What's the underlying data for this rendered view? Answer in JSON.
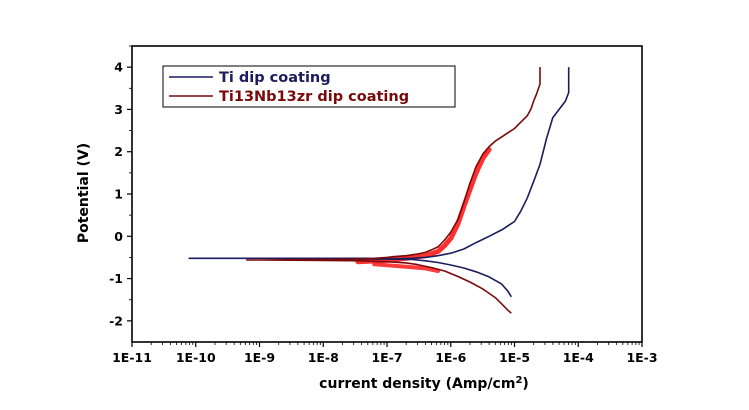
{
  "chart_data": {
    "type": "line",
    "xlabel": "current density (Amp/cm",
    "xlabel_sup": "2",
    "xlabel_close": ")",
    "ylabel": "Potential (V)",
    "x_scale": "log",
    "xlim": [
      1e-11,
      0.001
    ],
    "ylim": [
      -2.5,
      4.5
    ],
    "x_ticks": [
      1e-11,
      1e-10,
      1e-09,
      1e-08,
      1e-07,
      1e-06,
      1e-05,
      0.0001,
      0.001
    ],
    "x_tick_labels": [
      "1E-11",
      "1E-10",
      "1E-9",
      "1E-8",
      "1E-7",
      "1E-6",
      "1E-5",
      "1E-4",
      "1E-3"
    ],
    "y_ticks": [
      -2,
      -1,
      0,
      1,
      2,
      3,
      4
    ],
    "y_tick_labels": [
      "-2",
      "-1",
      "0",
      "1",
      "2",
      "3",
      "4"
    ],
    "grid": false,
    "legend_position": "top-left",
    "series": [
      {
        "name": "Ti dip coating",
        "color": "#1c1c5e",
        "points": [
          [
            7.08e-05,
            4.0
          ],
          [
            7.08e-05,
            3.4
          ],
          [
            6.3e-05,
            3.2
          ],
          [
            5e-05,
            3.0
          ],
          [
            3.98e-05,
            2.8
          ],
          [
            3.16e-05,
            2.3
          ],
          [
            2.51e-05,
            1.7
          ],
          [
            2e-05,
            1.3
          ],
          [
            1.58e-05,
            0.9
          ],
          [
            1.26e-05,
            0.6
          ],
          [
            1e-05,
            0.35
          ],
          [
            6.3e-06,
            0.15
          ],
          [
            4e-06,
            0.0
          ],
          [
            2.5e-06,
            -0.15
          ],
          [
            1.6e-06,
            -0.3
          ],
          [
            1e-06,
            -0.4
          ],
          [
            6.3e-07,
            -0.46
          ],
          [
            4e-07,
            -0.5
          ],
          [
            2.5e-07,
            -0.52
          ],
          [
            1.6e-07,
            -0.53
          ],
          [
            1e-07,
            -0.53
          ],
          [
            7.9e-08,
            -0.53
          ],
          [
            6.3e-08,
            -0.53
          ],
          [
            5e-08,
            -0.52
          ],
          [
            1e-08,
            -0.52
          ],
          [
            1e-09,
            -0.52
          ],
          [
            1e-10,
            -0.52
          ],
          [
            7.9e-11,
            -0.52
          ],
          [
            1e-10,
            -0.52
          ],
          [
            1e-09,
            -0.52
          ],
          [
            1e-08,
            -0.53
          ],
          [
            1e-07,
            -0.54
          ],
          [
            2.5e-07,
            -0.55
          ],
          [
            4e-07,
            -0.58
          ],
          [
            6.3e-07,
            -0.62
          ],
          [
            1e-06,
            -0.68
          ],
          [
            1.6e-06,
            -0.75
          ],
          [
            2.5e-06,
            -0.84
          ],
          [
            4e-06,
            -0.96
          ],
          [
            6.3e-06,
            -1.13
          ],
          [
            7.9e-06,
            -1.3
          ],
          [
            8.9e-06,
            -1.43
          ]
        ]
      },
      {
        "name": "Ti13Nb13zr dip coating",
        "color": "#7a0a0a",
        "points": [
          [
            2.51e-05,
            4.0
          ],
          [
            2.51e-05,
            3.6
          ],
          [
            2.2e-05,
            3.35
          ],
          [
            2e-05,
            3.2
          ],
          [
            1.8e-05,
            3.0
          ],
          [
            1.58e-05,
            2.85
          ],
          [
            1.26e-05,
            2.7
          ],
          [
            1e-05,
            2.55
          ],
          [
            7.9e-06,
            2.45
          ],
          [
            6.3e-06,
            2.35
          ],
          [
            5e-06,
            2.25
          ],
          [
            4e-06,
            2.12
          ],
          [
            3.2e-06,
            1.95
          ],
          [
            2.5e-06,
            1.65
          ],
          [
            2e-06,
            1.25
          ],
          [
            1.6e-06,
            0.8
          ],
          [
            1.3e-06,
            0.4
          ],
          [
            1e-06,
            0.1
          ],
          [
            7.9e-07,
            -0.1
          ],
          [
            6.3e-07,
            -0.25
          ],
          [
            5e-07,
            -0.32
          ],
          [
            4e-07,
            -0.38
          ],
          [
            3e-07,
            -0.42
          ],
          [
            2e-07,
            -0.46
          ],
          [
            1.3e-07,
            -0.48
          ],
          [
            1e-07,
            -0.5
          ],
          [
            6.3e-08,
            -0.52
          ],
          [
            4e-08,
            -0.54
          ],
          [
            1e-08,
            -0.55
          ],
          [
            1e-09,
            -0.56
          ],
          [
            6.3e-10,
            -0.56
          ],
          [
            1e-09,
            -0.56
          ],
          [
            1e-08,
            -0.57
          ],
          [
            4e-08,
            -0.58
          ],
          [
            1e-07,
            -0.6
          ],
          [
            2e-07,
            -0.63
          ],
          [
            3e-07,
            -0.67
          ],
          [
            5e-07,
            -0.74
          ],
          [
            8e-07,
            -0.82
          ],
          [
            1.3e-06,
            -0.95
          ],
          [
            2e-06,
            -1.08
          ],
          [
            3.2e-06,
            -1.25
          ],
          [
            5e-06,
            -1.45
          ],
          [
            6.3e-06,
            -1.6
          ],
          [
            7.9e-06,
            -1.75
          ],
          [
            8.9e-06,
            -1.82
          ]
        ]
      }
    ],
    "noise_band": {
      "color": "#ff1a1a",
      "points": [
        [
          3.5e-08,
          -0.6
        ],
        [
          1e-07,
          -0.57
        ],
        [
          2e-07,
          -0.52
        ],
        [
          4e-07,
          -0.46
        ],
        [
          6.3e-07,
          -0.36
        ],
        [
          8e-07,
          -0.22
        ],
        [
          1e-06,
          -0.05
        ],
        [
          1.3e-06,
          0.3
        ],
        [
          1.6e-06,
          0.7
        ],
        [
          2e-06,
          1.1
        ],
        [
          2.5e-06,
          1.5
        ],
        [
          3.2e-06,
          1.85
        ],
        [
          4e-06,
          2.05
        ]
      ],
      "lower": [
        [
          6.3e-08,
          -0.66
        ],
        [
          2e-07,
          -0.72
        ],
        [
          4e-07,
          -0.76
        ],
        [
          6.3e-07,
          -0.82
        ]
      ]
    }
  }
}
